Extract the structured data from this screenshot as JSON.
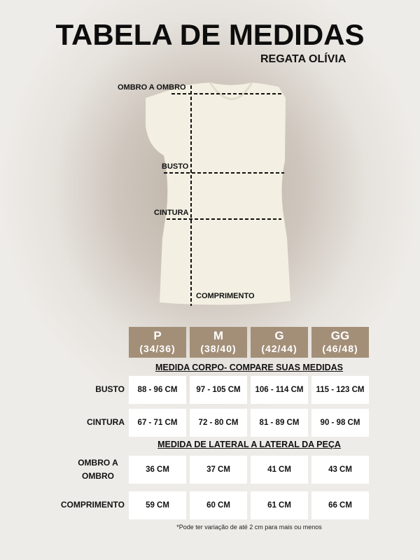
{
  "title": "TABELA DE MEDIDAS",
  "subtitle": "REGATA OLÍVIA",
  "diagram_labels": {
    "shoulder": "OMBRO A OMBRO",
    "bust": "BUSTO",
    "waist": "CINTURA",
    "length": "COMPRIMENTO"
  },
  "sizes": [
    {
      "size": "P",
      "range": "(34/36)"
    },
    {
      "size": "M",
      "range": "(38/40)"
    },
    {
      "size": "G",
      "range": "(42/44)"
    },
    {
      "size": "GG",
      "range": "(46/48)"
    }
  ],
  "section_body": "MEDIDA CORPO- COMPARE SUAS MEDIDAS",
  "section_garment": "MEDIDA  DE LATERAL A LATERAL DA PEÇA",
  "rows": [
    {
      "label": "BUSTO",
      "values": [
        "88 - 96 CM",
        "97 - 105 CM",
        "106 - 114 CM",
        "115 - 123 CM"
      ]
    },
    {
      "label": "CINTURA",
      "values": [
        "67 - 71 CM",
        "72 - 80 CM",
        "81 - 89 CM",
        "90 - 98 CM"
      ]
    },
    {
      "label": "OMBRO A OMBRO",
      "values": [
        "36 CM",
        "37 CM",
        "41 CM",
        "43 CM"
      ]
    },
    {
      "label": "COMPRIMENTO",
      "values": [
        "59 CM",
        "60 CM",
        "61 CM",
        "66 CM"
      ]
    }
  ],
  "footnote": "*Pode ter variação de até 2 cm para mais ou menos",
  "colors": {
    "header": "#a38f78",
    "shirt": "#f3efe2"
  }
}
